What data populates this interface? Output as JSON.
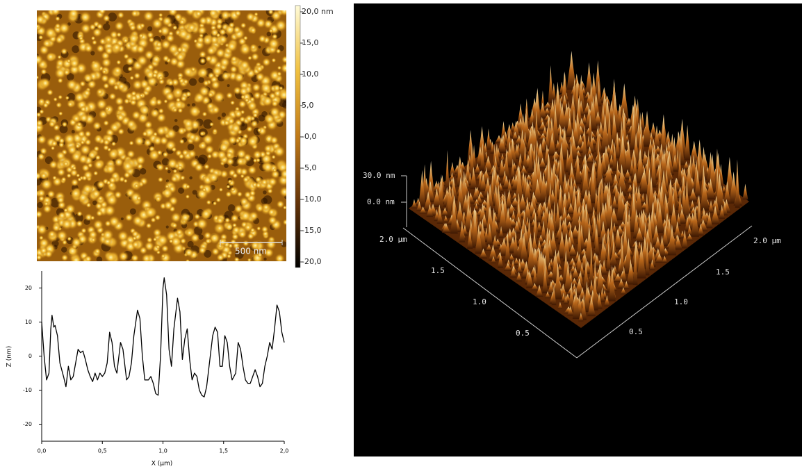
{
  "afm_image": {
    "scale_bar": "500 nm",
    "colorbar": {
      "range": [
        -20,
        20
      ],
      "ticks": [
        {
          "value": 20,
          "label": "20,0 nm"
        },
        {
          "value": 15,
          "label": "15,0"
        },
        {
          "value": 10,
          "label": "10,0"
        },
        {
          "value": 5,
          "label": "5,0"
        },
        {
          "value": 0,
          "label": "-0,0"
        },
        {
          "value": -5,
          "label": "-5,0"
        },
        {
          "value": -10,
          "label": "-10,0"
        },
        {
          "value": -15,
          "label": "-15,0"
        },
        {
          "value": -20,
          "label": "-20,0"
        }
      ]
    }
  },
  "chart_data": {
    "type": "line",
    "xlabel": "X (µm)",
    "ylabel": "Z (nm)",
    "color": "#000000",
    "x": [
      0,
      0.02,
      0.04,
      0.06,
      0.075,
      0.085,
      0.1,
      0.11,
      0.13,
      0.15,
      0.18,
      0.2,
      0.22,
      0.24,
      0.26,
      0.28,
      0.3,
      0.32,
      0.34,
      0.36,
      0.38,
      0.4,
      0.42,
      0.44,
      0.46,
      0.48,
      0.5,
      0.52,
      0.54,
      0.56,
      0.58,
      0.6,
      0.62,
      0.65,
      0.67,
      0.7,
      0.72,
      0.74,
      0.76,
      0.79,
      0.81,
      0.83,
      0.85,
      0.88,
      0.9,
      0.92,
      0.94,
      0.96,
      0.98,
      1.0,
      1.01,
      1.03,
      1.05,
      1.07,
      1.09,
      1.12,
      1.14,
      1.16,
      1.18,
      1.2,
      1.22,
      1.24,
      1.26,
      1.28,
      1.3,
      1.32,
      1.34,
      1.36,
      1.38,
      1.41,
      1.43,
      1.45,
      1.47,
      1.49,
      1.51,
      1.53,
      1.55,
      1.57,
      1.6,
      1.62,
      1.64,
      1.66,
      1.68,
      1.7,
      1.72,
      1.74,
      1.76,
      1.78,
      1.8,
      1.82,
      1.84,
      1.86,
      1.88,
      1.9,
      1.92,
      1.94,
      1.96,
      1.98,
      2.0
    ],
    "values": [
      10,
      0,
      -7,
      -5,
      8,
      12,
      8.5,
      9,
      6,
      -2,
      -6,
      -9,
      -3,
      -7,
      -6,
      -2,
      2,
      1,
      1.5,
      -1,
      -4,
      -6,
      -7.5,
      -5,
      -7,
      -5,
      -6,
      -5,
      -2,
      7,
      4,
      -3,
      -5,
      4,
      2,
      -7,
      -6,
      -2,
      6,
      13.5,
      11,
      0,
      -7,
      -7,
      -6,
      -8,
      -11,
      -11.5,
      0,
      20,
      23,
      18,
      2,
      -3,
      8,
      17,
      13,
      -1,
      5,
      8,
      -1,
      -7,
      -5,
      -6,
      -10,
      -11.5,
      -12,
      -9,
      -3,
      6,
      8.5,
      7,
      -3,
      -3,
      6,
      4,
      -3,
      -7,
      -5,
      4,
      2,
      -3,
      -7,
      -8,
      -8,
      -6,
      -4,
      -6,
      -9,
      -8,
      -3,
      0,
      4,
      2,
      8,
      15,
      13,
      7,
      4
    ],
    "xlim": [
      0,
      2
    ],
    "ylim": [
      -25,
      25
    ],
    "xticks": [
      {
        "value": 0,
        "label": "0,0"
      },
      {
        "value": 0.5,
        "label": "0,5"
      },
      {
        "value": 1,
        "label": "1,0"
      },
      {
        "value": 1.5,
        "label": "1,5"
      },
      {
        "value": 2,
        "label": "2,0"
      }
    ],
    "yticks": [
      20,
      10,
      0,
      -10,
      -20
    ]
  },
  "surface_3d": {
    "z_labels": [
      "30.0 nm",
      "0.0 nm"
    ],
    "left_axis": [
      "2.0 µm",
      "1.5",
      "1.0",
      "0.5"
    ],
    "right_axis": [
      "0.5",
      "1.0",
      "1.5",
      "2.0 µm"
    ]
  }
}
